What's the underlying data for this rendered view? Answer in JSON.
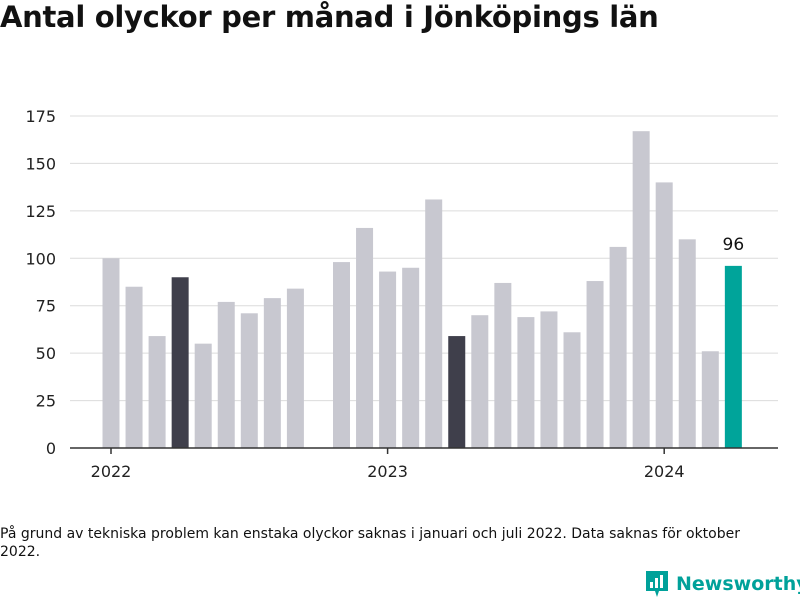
{
  "title": "Antal olyckor per månad i Jönköpings län",
  "footnote": "På grund av tekniska problem kan enstaka olyckor saknas i januari och juli 2022. Data saknas för oktober 2022.",
  "brand": {
    "name": "Newsworthy",
    "icon": "newsworthy-logo-icon",
    "color": "#00a19a"
  },
  "colors": {
    "bar": "#c8c8d0",
    "highlight_dark": "#3f3f4b",
    "highlight_accent": "#00a49a",
    "grid": "#dcdcdc",
    "axis": "#333333"
  },
  "chart_data": {
    "type": "bar",
    "title": "Antal olyckor per månad i Jönköpings län",
    "xlabel": "",
    "ylabel": "",
    "ylim": [
      0,
      175
    ],
    "yticks": [
      0,
      25,
      50,
      75,
      100,
      125,
      150,
      175
    ],
    "xtick_labels": [
      {
        "label": "2022",
        "month": "2022-01"
      },
      {
        "label": "2023",
        "month": "2023-01"
      },
      {
        "label": "2024",
        "month": "2024-01"
      }
    ],
    "grid": true,
    "bars": [
      {
        "month": "2022-01",
        "value": 100
      },
      {
        "month": "2022-02",
        "value": 85
      },
      {
        "month": "2022-03",
        "value": 59
      },
      {
        "month": "2022-04",
        "value": 90,
        "highlight": "dark"
      },
      {
        "month": "2022-05",
        "value": 55
      },
      {
        "month": "2022-06",
        "value": 77
      },
      {
        "month": "2022-07",
        "value": 71
      },
      {
        "month": "2022-08",
        "value": 79
      },
      {
        "month": "2022-09",
        "value": 84
      },
      {
        "month": "2022-10",
        "value": null
      },
      {
        "month": "2022-11",
        "value": 98
      },
      {
        "month": "2022-12",
        "value": 116
      },
      {
        "month": "2023-01",
        "value": 93
      },
      {
        "month": "2023-02",
        "value": 95
      },
      {
        "month": "2023-03",
        "value": 131
      },
      {
        "month": "2023-04",
        "value": 59,
        "highlight": "dark"
      },
      {
        "month": "2023-05",
        "value": 70
      },
      {
        "month": "2023-06",
        "value": 87
      },
      {
        "month": "2023-07",
        "value": 69
      },
      {
        "month": "2023-08",
        "value": 72
      },
      {
        "month": "2023-09",
        "value": 61
      },
      {
        "month": "2023-10",
        "value": 88
      },
      {
        "month": "2023-11",
        "value": 106
      },
      {
        "month": "2023-12",
        "value": 167
      },
      {
        "month": "2024-01",
        "value": 140
      },
      {
        "month": "2024-02",
        "value": 110
      },
      {
        "month": "2024-03",
        "value": 51
      },
      {
        "month": "2024-04",
        "value": 96,
        "highlight": "accent",
        "label": "96"
      }
    ]
  }
}
